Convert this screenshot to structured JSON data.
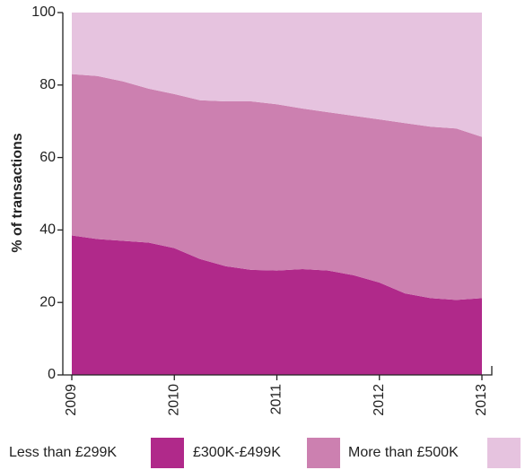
{
  "chart_data": {
    "type": "stacked_area",
    "y_label": "% of transactions",
    "x": [
      2009,
      2009.25,
      2009.5,
      2009.75,
      2010,
      2010.25,
      2010.5,
      2010.75,
      2011,
      2011.25,
      2011.5,
      2011.75,
      2012,
      2012.25,
      2012.5,
      2012.75,
      2013
    ],
    "series": [
      {
        "name": "Less than £299K",
        "color": "#b0298a",
        "values": [
          38.5,
          37.5,
          37,
          36.5,
          35,
          32,
          30,
          29,
          28.8,
          29.2,
          28.8,
          27.5,
          25.5,
          22.5,
          21.2,
          20.7,
          21.2
        ]
      },
      {
        "name": "£300K-£499K",
        "color": "#cc80b0",
        "values": [
          44.5,
          45,
          44,
          42.5,
          42.5,
          43.8,
          45.5,
          46.5,
          45.9,
          44.3,
          43.7,
          44,
          45,
          47,
          47.3,
          47.3,
          44.5
        ]
      },
      {
        "name": "More than £500K",
        "color": "#e6c3df",
        "values": [
          17,
          17.5,
          19,
          21,
          22.5,
          24.2,
          24.5,
          24.5,
          25.3,
          26.5,
          27.5,
          28.5,
          29.5,
          30.5,
          31.5,
          32,
          34.3
        ]
      }
    ],
    "xlim": [
      2009,
      2013
    ],
    "xticks": [
      2009,
      2010,
      2011,
      2012,
      2013
    ],
    "ylim": [
      0,
      100
    ],
    "yticks": [
      0,
      20,
      40,
      60,
      80,
      100
    ]
  }
}
